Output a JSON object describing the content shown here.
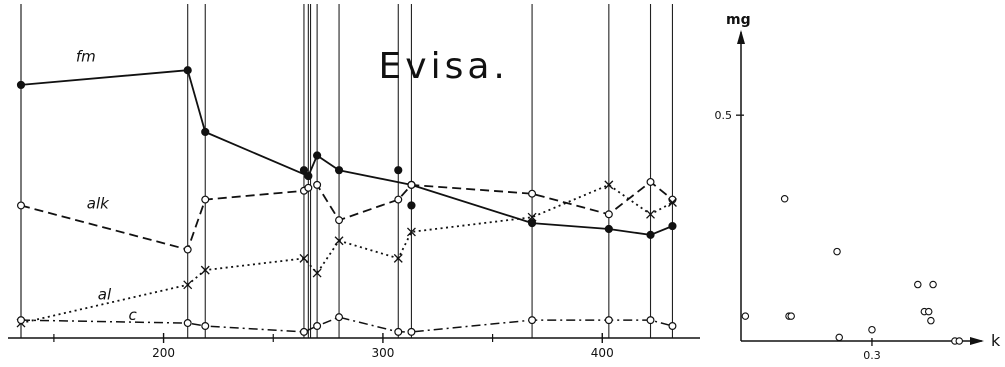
{
  "chart_data": [
    {
      "type": "line",
      "title": "Evisa.",
      "xlabel": "",
      "ylabel": "",
      "xlim": [
        135,
        440
      ],
      "ylim": [
        0,
        100
      ],
      "grid": false,
      "x_ticks": [
        200,
        300,
        400
      ],
      "x_minor_ticks": [
        150,
        250,
        350
      ],
      "vertical_lines_x": [
        211,
        219,
        264,
        266,
        267,
        270,
        280,
        307,
        313,
        368,
        403,
        422,
        432
      ],
      "series": [
        {
          "name": "fm",
          "style": "solid",
          "marker": "filled-circle",
          "label_pos": [
            160,
            90
          ],
          "points": [
            [
              135,
              82
            ],
            [
              211,
              87
            ],
            [
              219,
              66
            ],
            [
              266,
              51
            ],
            [
              270,
              58
            ],
            [
              280,
              53
            ],
            [
              313,
              48
            ],
            [
              368,
              35
            ],
            [
              403,
              33
            ],
            [
              422,
              31
            ],
            [
              432,
              34
            ]
          ]
        },
        {
          "name": "alk",
          "style": "dashed",
          "marker": "open-circle",
          "label_pos": [
            165,
            40
          ],
          "points": [
            [
              135,
              41
            ],
            [
              211,
              26
            ],
            [
              219,
              43
            ],
            [
              264,
              46
            ],
            [
              266,
              47
            ],
            [
              270,
              48
            ],
            [
              280,
              36
            ],
            [
              307,
              43
            ],
            [
              313,
              48
            ],
            [
              368,
              45
            ],
            [
              403,
              38
            ],
            [
              422,
              49
            ],
            [
              432,
              43
            ]
          ]
        },
        {
          "name": "al",
          "style": "dotted",
          "marker": "cross",
          "label_pos": [
            170,
            9
          ],
          "points": [
            [
              135,
              1
            ],
            [
              211,
              14
            ],
            [
              219,
              19
            ],
            [
              264,
              23
            ],
            [
              270,
              18
            ],
            [
              280,
              29
            ],
            [
              307,
              23
            ],
            [
              313,
              32
            ],
            [
              368,
              37
            ],
            [
              403,
              48
            ],
            [
              422,
              38
            ],
            [
              432,
              42
            ]
          ]
        },
        {
          "name": "c",
          "style": "dash-dot",
          "marker": "open-circle",
          "label_pos": [
            184,
            2
          ],
          "points": [
            [
              135,
              2
            ],
            [
              211,
              1
            ],
            [
              219,
              0
            ],
            [
              264,
              -2
            ],
            [
              270,
              0
            ],
            [
              280,
              3
            ],
            [
              307,
              -2
            ],
            [
              313,
              -2
            ],
            [
              368,
              2
            ],
            [
              403,
              2
            ],
            [
              422,
              2
            ],
            [
              432,
              0
            ]
          ]
        }
      ],
      "extra_points": [
        [
          264,
          53
        ],
        [
          307,
          53
        ],
        [
          313,
          41
        ]
      ]
    },
    {
      "type": "scatter",
      "title": "",
      "xlabel": "k",
      "ylabel": "mg",
      "xlim": [
        0,
        0.52
      ],
      "ylim": [
        0,
        0.6
      ],
      "x_ticks": [
        {
          "value": 0.3,
          "label": "0.3"
        }
      ],
      "y_ticks": [
        {
          "value": 0.5,
          "label": "0.5"
        }
      ],
      "marker": "open-circle",
      "points": [
        [
          0.01,
          0.055
        ],
        [
          0.1,
          0.315
        ],
        [
          0.11,
          0.055
        ],
        [
          0.115,
          0.055
        ],
        [
          0.22,
          0.198
        ],
        [
          0.225,
          0.008
        ],
        [
          0.3,
          0.025
        ],
        [
          0.405,
          0.125
        ],
        [
          0.42,
          0.065
        ],
        [
          0.43,
          0.065
        ],
        [
          0.435,
          0.045
        ],
        [
          0.44,
          0.125
        ],
        [
          0.49,
          0.0
        ],
        [
          0.5,
          0.0
        ]
      ]
    }
  ]
}
